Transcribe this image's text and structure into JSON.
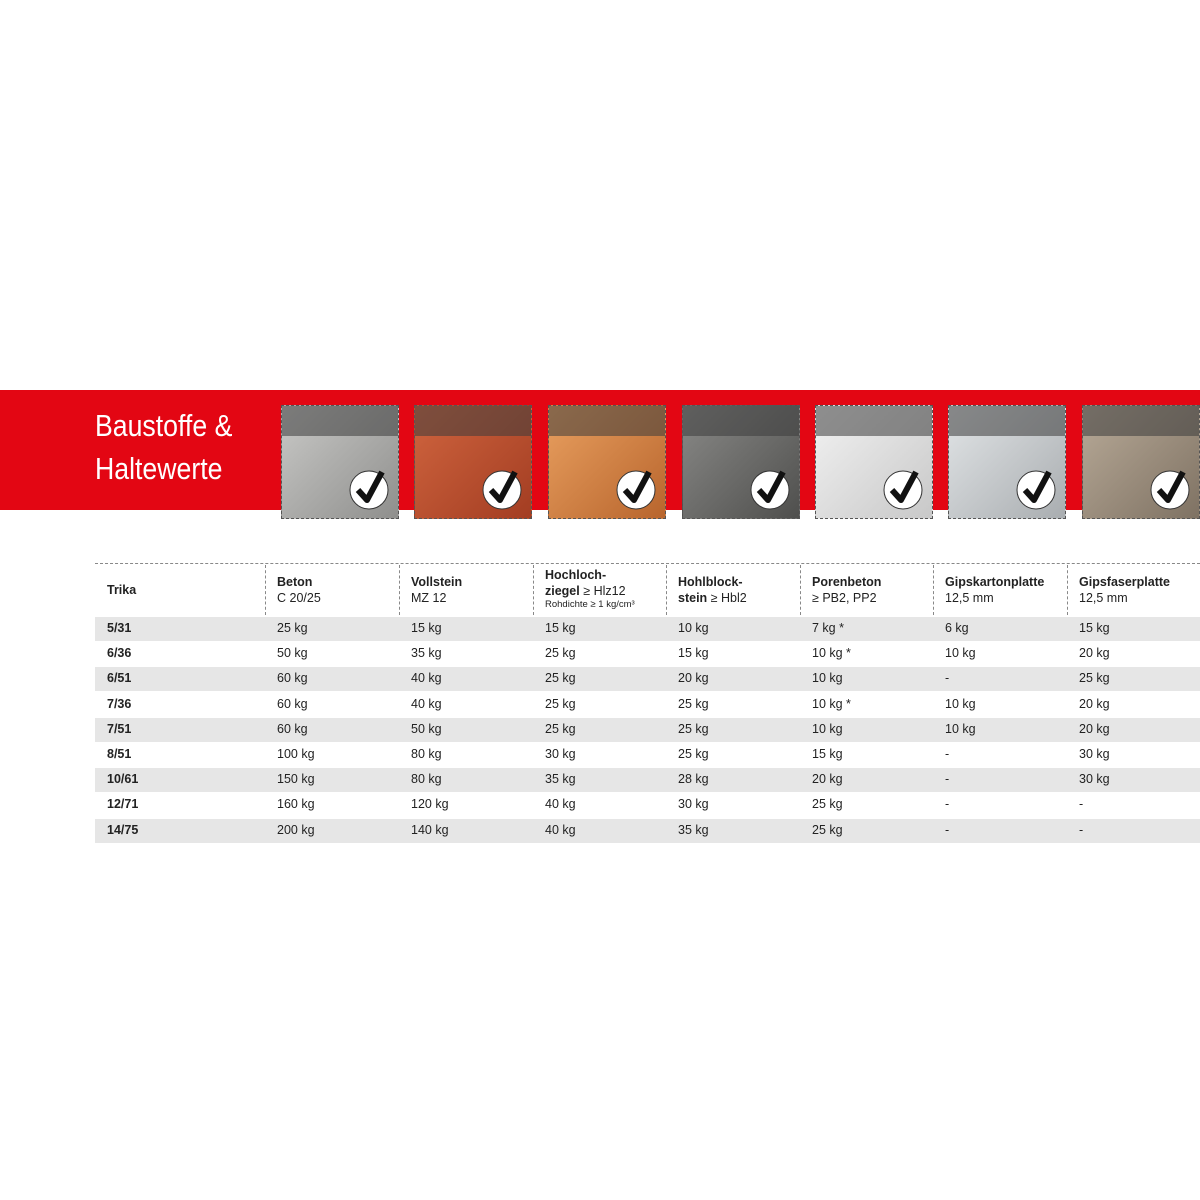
{
  "header": {
    "title_lines": [
      "Baustoffe &",
      "Haltewerte"
    ]
  },
  "table": {
    "columns": [
      {
        "name_lines": [
          "Trika"
        ]
      },
      {
        "name_lines": [
          "Beton"
        ],
        "spec": "C 20/25"
      },
      {
        "name_lines": [
          "Vollstein"
        ],
        "spec": "MZ 12"
      },
      {
        "name_lines": [
          "Hochloch-",
          "ziegel"
        ],
        "spec": "≥ Hlz12",
        "note": "Rohdichte ≥ 1 kg/cm³"
      },
      {
        "name_lines": [
          "Hohlblock-",
          "stein"
        ],
        "spec": "≥ Hbl2"
      },
      {
        "name_lines": [
          "Porenbeton"
        ],
        "spec": "≥ PB2, PP2"
      },
      {
        "name_lines": [
          "Gipskartonplatte"
        ],
        "spec": "12,5 mm"
      },
      {
        "name_lines": [
          "Gipsfaserplatte"
        ],
        "spec": "12,5 mm"
      }
    ],
    "rows": [
      [
        "5/31",
        "25 kg",
        "15 kg",
        "15 kg",
        "10 kg",
        "7 kg *",
        "6 kg",
        "15 kg"
      ],
      [
        "6/36",
        "50 kg",
        "35 kg",
        "25 kg",
        "15 kg",
        "10 kg *",
        "10 kg",
        "20 kg"
      ],
      [
        "6/51",
        "60 kg",
        "40 kg",
        "25 kg",
        "20 kg",
        "10 kg",
        "-",
        "25 kg"
      ],
      [
        "7/36",
        "60 kg",
        "40 kg",
        "25 kg",
        "25 kg",
        "10 kg *",
        "10 kg",
        "20 kg"
      ],
      [
        "7/51",
        "60 kg",
        "50 kg",
        "25 kg",
        "25 kg",
        "10 kg",
        "10 kg",
        "20 kg"
      ],
      [
        "8/51",
        "100 kg",
        "80 kg",
        "30 kg",
        "25 kg",
        "15 kg",
        "-",
        "30 kg"
      ],
      [
        "10/61",
        "150 kg",
        "80 kg",
        "35 kg",
        "28 kg",
        "20 kg",
        "-",
        "30 kg"
      ],
      [
        "12/71",
        "160 kg",
        "120 kg",
        "40 kg",
        "30 kg",
        "25 kg",
        "-",
        "-"
      ],
      [
        "14/75",
        "200 kg",
        "140 kg",
        "40 kg",
        "35 kg",
        "25 kg",
        "-",
        "-"
      ]
    ]
  }
}
